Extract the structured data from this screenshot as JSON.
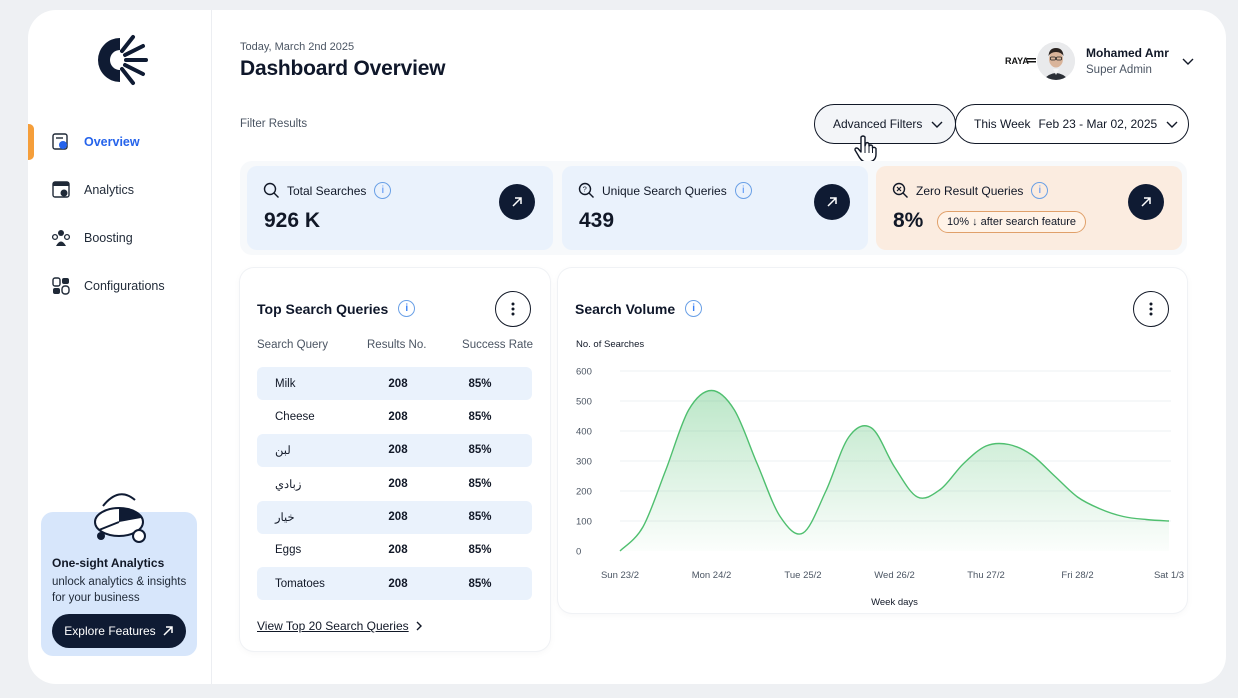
{
  "sidebar": {
    "items": [
      {
        "label": "Overview",
        "icon": "overview-icon",
        "active": true
      },
      {
        "label": "Analytics",
        "icon": "analytics-icon",
        "active": false
      },
      {
        "label": "Boosting",
        "icon": "boosting-icon",
        "active": false
      },
      {
        "label": "Configurations",
        "icon": "configurations-icon",
        "active": false
      }
    ],
    "promo": {
      "title": "One-sight Analytics",
      "text": "unlock analytics & insights for your business",
      "button": "Explore Features"
    }
  },
  "header": {
    "date": "Today, March 2nd 2025",
    "title": "Dashboard Overview",
    "user": {
      "name": "Mohamed Amr",
      "role": "Super Admin",
      "org": "RAYA"
    }
  },
  "filters": {
    "label": "Filter Results",
    "advanced": "Advanced Filters",
    "period_label": "This Week",
    "period_range": "Feb 23 - Mar 02, 2025"
  },
  "stats": [
    {
      "label": "Total Searches",
      "value": "926 K",
      "icon": "search-icon"
    },
    {
      "label": "Unique Search Queries",
      "value": "439",
      "icon": "question-search-icon"
    },
    {
      "label": "Zero Result Queries",
      "value": "8%",
      "icon": "zero-result-icon",
      "badge": "10% ↓ after search feature"
    }
  ],
  "top_queries": {
    "title": "Top Search Queries",
    "columns": [
      "Search Query",
      "Results No.",
      "Success Rate"
    ],
    "rows": [
      {
        "query": "Milk",
        "results": "208",
        "rate": "85%"
      },
      {
        "query": "Cheese",
        "results": "208",
        "rate": "85%"
      },
      {
        "query": "لبن",
        "results": "208",
        "rate": "85%"
      },
      {
        "query": "زبادي",
        "results": "208",
        "rate": "85%"
      },
      {
        "query": "خيار",
        "results": "208",
        "rate": "85%"
      },
      {
        "query": "Eggs",
        "results": "208",
        "rate": "85%"
      },
      {
        "query": "Tomatoes",
        "results": "208",
        "rate": "85%"
      }
    ],
    "link": "View Top 20 Search Queries"
  },
  "search_volume": {
    "title": "Search Volume"
  },
  "colors": {
    "accent": "#2563eb",
    "active_marker": "#f59e3a",
    "navy": "#0f1b33",
    "card_blue": "#eaf2fc",
    "card_peach": "#fbece0",
    "line": "#4fbf6f"
  },
  "chart_data": {
    "type": "area",
    "title": "Search Volume",
    "ylabel": "No. of Searches",
    "xlabel": "Week days",
    "categories": [
      "Sun 23/2",
      "Mon 24/2",
      "Tue 25/2",
      "Wed 26/2",
      "Thu 27/2",
      "Fri 28/2",
      "Sat 1/3"
    ],
    "yticks": [
      "0",
      "100",
      "200",
      "300",
      "400",
      "500",
      "600"
    ],
    "ylim": [
      0,
      600
    ],
    "grid": true,
    "series": [
      {
        "x": [
          0,
          0.25,
          0.5,
          0.75,
          1,
          1.25,
          1.5,
          1.75,
          2,
          2.25,
          2.5,
          2.75,
          3,
          3.25,
          3.5,
          3.75,
          4,
          4.25,
          4.5,
          4.75,
          5,
          5.25,
          5.5,
          5.75,
          6
        ],
        "values": [
          0,
          80,
          270,
          470,
          535,
          470,
          290,
          115,
          60,
          200,
          380,
          410,
          280,
          180,
          205,
          290,
          350,
          355,
          320,
          250,
          180,
          140,
          115,
          105,
          100
        ]
      }
    ]
  }
}
